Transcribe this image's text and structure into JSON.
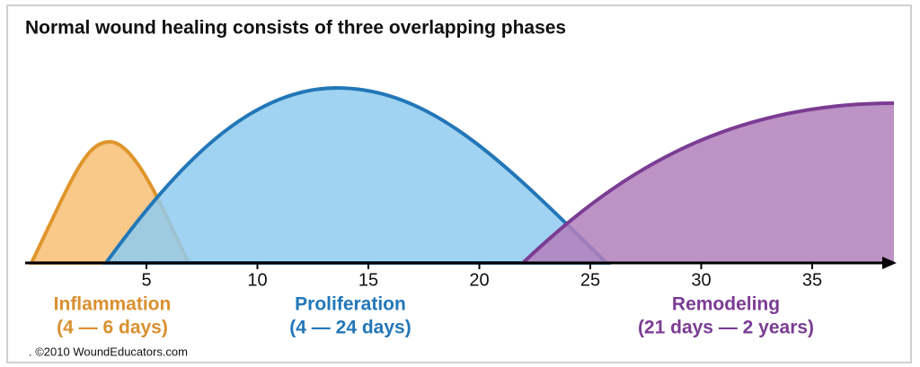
{
  "title": "Normal wound healing consists of three overlapping phases",
  "axis": {
    "ticks": [
      5,
      10,
      15,
      20,
      25,
      30,
      35
    ]
  },
  "phases": [
    {
      "name": "Inflammation",
      "range": "(4 — 6 days)",
      "color": "#d9902f"
    },
    {
      "name": "Proliferation",
      "range": "(4 — 24 days)",
      "color": "#2277b8"
    },
    {
      "name": "Remodeling",
      "range": "(21 days — 2 years)",
      "color": "#7b3c93"
    }
  ],
  "credit": ". ©2010 WoundEducators.com"
}
